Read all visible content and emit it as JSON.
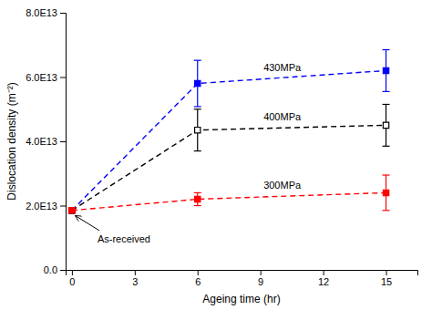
{
  "chart_data": {
    "type": "line",
    "x": [
      0,
      6,
      15
    ],
    "series": [
      {
        "name": "430MPa",
        "color": "blue",
        "marker": "square",
        "line_style": "dashed",
        "values": [
          18500000000000.0,
          58000000000000.0,
          62000000000000.0
        ],
        "errors": [
          0,
          7200000000000.0,
          6500000000000.0
        ]
      },
      {
        "name": "400MPa",
        "color": "black",
        "marker": "square-open",
        "line_style": "dashed",
        "values": [
          18500000000000.0,
          43500000000000.0,
          45000000000000.0
        ],
        "errors": [
          0,
          6500000000000.0,
          6500000000000.0
        ]
      },
      {
        "name": "300MPa",
        "color": "red",
        "marker": "square",
        "line_style": "dashed",
        "values": [
          18500000000000.0,
          22000000000000.0,
          24000000000000.0
        ],
        "errors": [
          0,
          2000000000000.0,
          5500000000000.0
        ]
      }
    ],
    "xlabel": "Ageing time (hr)",
    "ylabel": "Dislocation density (m⁻²)",
    "xlim": [
      -0.3,
      16.5
    ],
    "ylim": [
      0,
      80000000000000.0
    ],
    "xticks": [
      0,
      3,
      6,
      9,
      12,
      15
    ],
    "yticks": [
      {
        "value": 0,
        "label": "0.0"
      },
      {
        "value": 20000000000000.0,
        "label": "2.0E13"
      },
      {
        "value": 40000000000000.0,
        "label": "4.0E13"
      },
      {
        "value": 60000000000000.0,
        "label": "6.0E13"
      },
      {
        "value": 80000000000000.0,
        "label": "8.0E13"
      }
    ],
    "annotations": [
      "As-received"
    ],
    "grid": false
  }
}
